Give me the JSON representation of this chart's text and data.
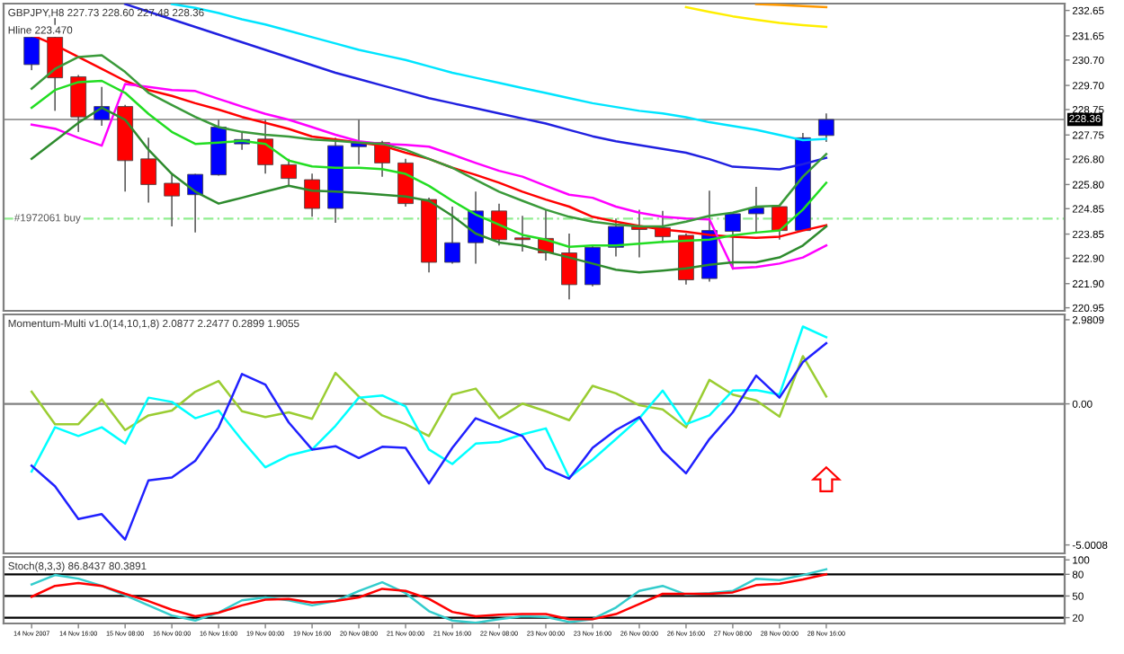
{
  "chart_data": [
    {
      "type": "candlestick",
      "title": "GBPJPY,H8 227.73 228.60 227.48 228.36",
      "annotations": [
        "Hline 223.470"
      ],
      "categories": [
        null,
        null,
        null,
        null,
        null,
        null,
        null,
        null,
        null,
        null,
        null,
        null,
        null,
        null,
        null,
        null,
        null,
        null,
        null,
        null,
        null,
        null,
        null,
        null,
        null,
        null,
        null,
        null,
        null,
        null,
        null,
        null,
        null,
        null,
        null
      ],
      "tick_labels": "y",
      "ohlc": [
        [
          230.52,
          231.7,
          230.3,
          231.6
        ],
        [
          231.6,
          232.35,
          228.7,
          230.0
        ],
        [
          230.04,
          230.11,
          227.87,
          228.46
        ],
        [
          228.35,
          229.64,
          228.11,
          228.87
        ],
        [
          228.87,
          228.93,
          225.52,
          226.74
        ],
        [
          226.81,
          227.64,
          225.09,
          225.8
        ],
        [
          225.85,
          226.22,
          224.15,
          225.35
        ],
        [
          225.4,
          226.22,
          223.91,
          226.2
        ],
        [
          226.18,
          228.35,
          226.15,
          228.06
        ],
        [
          227.4,
          227.87,
          227.17,
          227.57
        ],
        [
          227.59,
          228.35,
          226.23,
          226.58
        ],
        [
          226.58,
          226.81,
          225.75,
          226.04
        ],
        [
          225.99,
          226.23,
          224.53,
          224.86
        ],
        [
          224.86,
          227.64,
          224.29,
          227.33
        ],
        [
          227.29,
          228.35,
          226.58,
          227.45
        ],
        [
          227.45,
          227.52,
          226.11,
          226.65
        ],
        [
          226.65,
          226.81,
          224.93,
          225.05
        ],
        [
          225.21,
          225.28,
          222.34,
          222.74
        ],
        [
          222.74,
          224.93,
          222.69,
          223.51
        ],
        [
          223.51,
          225.52,
          222.69,
          224.76
        ],
        [
          224.76,
          225.05,
          223.4,
          223.63
        ],
        [
          223.7,
          224.57,
          223.16,
          223.63
        ],
        [
          223.68,
          224.81,
          222.81,
          223.11
        ],
        [
          223.11,
          223.87,
          221.28,
          221.86
        ],
        [
          221.86,
          223.4,
          221.79,
          223.33
        ],
        [
          223.33,
          224.46,
          222.97,
          224.15
        ],
        [
          224.17,
          224.81,
          222.93,
          224.03
        ],
        [
          224.1,
          224.76,
          223.51,
          223.75
        ],
        [
          223.8,
          223.87,
          221.86,
          222.05
        ],
        [
          222.1,
          225.56,
          221.98,
          223.99
        ],
        [
          223.96,
          224.69,
          222.45,
          224.65
        ],
        [
          224.65,
          225.71,
          223.87,
          224.88
        ],
        [
          224.93,
          224.93,
          223.63,
          223.99
        ],
        [
          223.99,
          227.83,
          223.99,
          227.64
        ],
        [
          227.73,
          228.6,
          227.48,
          228.36
        ]
      ],
      "colors": [
        "#0000ff",
        "#ff0000",
        "#ff0000",
        "#0000ff",
        "#ff0000",
        "#ff0000",
        "#ff0000",
        "#0000ff",
        "#0000ff",
        "#0000ff",
        "#ff0000",
        "#ff0000",
        "#ff0000",
        "#0000ff",
        "#0000ff",
        "#ff0000",
        "#ff0000",
        "#ff0000",
        "#0000ff",
        "#0000ff",
        "#ff0000",
        "#ff0000",
        "#ff0000",
        "#ff0000",
        "#0000ff",
        "#0000ff",
        "#ff0000",
        "#ff0000",
        "#ff0000",
        "#0000ff",
        "#0000ff",
        "#0000ff",
        "#ff0000",
        "#0000ff",
        "#0000ff"
      ],
      "series": [
        {
          "type": "line",
          "color": "#00e5ff",
          "values": [
            null,
            null,
            null,
            null,
            null,
            null,
            232.9,
            232.75,
            232.55,
            232.3,
            232.1,
            231.85,
            231.6,
            231.35,
            231.1,
            230.9,
            230.7,
            230.45,
            230.2,
            230.0,
            229.8,
            229.6,
            229.4,
            229.2,
            229.0,
            228.85,
            228.7,
            228.6,
            228.45,
            228.25,
            228.1,
            227.95,
            227.75,
            227.55,
            227.6
          ]
        },
        {
          "type": "line",
          "color": "#2020e0",
          "values": [
            null,
            null,
            null,
            null,
            232.9,
            232.6,
            232.3,
            232.0,
            231.7,
            231.4,
            231.1,
            230.8,
            230.5,
            230.2,
            229.95,
            229.7,
            229.45,
            229.2,
            229.0,
            228.8,
            228.6,
            228.4,
            228.2,
            227.95,
            227.7,
            227.5,
            227.35,
            227.2,
            227.05,
            226.8,
            226.5,
            226.45,
            226.4,
            226.6,
            226.85
          ]
        },
        {
          "type": "line",
          "color": "#ffee00",
          "values": [
            null,
            null,
            null,
            null,
            null,
            null,
            null,
            null,
            null,
            null,
            null,
            null,
            null,
            null,
            null,
            null,
            null,
            null,
            null,
            null,
            null,
            null,
            null,
            null,
            null,
            null,
            null,
            null,
            232.78,
            232.59,
            232.42,
            232.28,
            232.16,
            232.07,
            232.0
          ]
        },
        {
          "type": "line",
          "color": "#ff9900",
          "values": [
            null,
            null,
            null,
            null,
            null,
            null,
            null,
            null,
            null,
            null,
            null,
            null,
            null,
            null,
            null,
            null,
            null,
            null,
            null,
            null,
            null,
            null,
            null,
            null,
            null,
            null,
            null,
            null,
            null,
            null,
            null,
            232.9,
            232.87,
            232.82,
            232.78
          ]
        },
        {
          "type": "line",
          "color": "#ff0000",
          "values": [
            231.69,
            231.29,
            230.82,
            230.35,
            229.88,
            229.52,
            229.29,
            229.0,
            228.75,
            228.46,
            228.23,
            227.99,
            227.69,
            227.57,
            227.45,
            227.33,
            227.05,
            226.81,
            226.46,
            226.18,
            225.87,
            225.52,
            225.21,
            224.93,
            224.53,
            224.34,
            224.17,
            224.03,
            223.94,
            223.82,
            223.75,
            223.7,
            223.75,
            223.99,
            224.2
          ]
        },
        {
          "type": "line",
          "color": "#ff00ff",
          "values": [
            228.16,
            228.0,
            227.64,
            227.33,
            229.76,
            229.64,
            229.52,
            229.48,
            229.17,
            228.87,
            228.58,
            228.35,
            228.06,
            227.76,
            227.5,
            227.4,
            227.36,
            227.29,
            226.98,
            226.65,
            226.34,
            226.11,
            225.75,
            225.4,
            225.28,
            224.93,
            224.69,
            224.53,
            224.46,
            224.43,
            222.5,
            222.55,
            222.69,
            222.93,
            223.4
          ]
        },
        {
          "type": "line",
          "color": "#22dd22",
          "values": [
            228.82,
            229.52,
            229.83,
            229.88,
            229.41,
            228.58,
            227.87,
            227.4,
            227.45,
            227.52,
            227.4,
            226.74,
            226.51,
            226.46,
            226.46,
            226.41,
            226.22,
            225.75,
            225.16,
            224.62,
            224.22,
            223.82,
            223.63,
            223.35,
            223.4,
            223.4,
            223.47,
            223.54,
            223.59,
            223.63,
            223.8,
            223.91,
            223.99,
            224.81,
            225.87
          ]
        },
        {
          "type": "line",
          "color": "#3a9a3a",
          "values": [
            229.57,
            230.35,
            230.82,
            230.89,
            230.23,
            229.41,
            228.93,
            228.46,
            228.06,
            227.87,
            227.76,
            227.69,
            227.57,
            227.52,
            227.45,
            227.4,
            227.17,
            226.81,
            226.46,
            225.99,
            225.52,
            225.16,
            224.81,
            224.53,
            224.34,
            224.22,
            224.15,
            224.15,
            224.34,
            224.57,
            224.69,
            224.93,
            224.97,
            226.11,
            227.0
          ]
        },
        {
          "type": "line",
          "color": "#2e8b2e",
          "values": [
            226.81,
            227.52,
            228.23,
            228.82,
            228.35,
            227.17,
            226.22,
            225.52,
            225.05,
            225.28,
            225.52,
            225.75,
            225.56,
            225.52,
            225.47,
            225.4,
            225.33,
            225.16,
            224.57,
            223.87,
            223.52,
            223.4,
            223.16,
            222.93,
            222.69,
            222.45,
            222.34,
            222.41,
            222.5,
            222.64,
            222.74,
            222.74,
            222.93,
            223.4,
            224.15
          ]
        }
      ],
      "ref_lines": [
        {
          "axis": "y",
          "value": 228.36,
          "label": "228.36",
          "color": "#a0a0a0",
          "line_style": "solid"
        },
        {
          "axis": "y",
          "value": 224.46,
          "label": "#1972061 buy",
          "color": "#90ee90",
          "line_style": "dashed"
        }
      ],
      "ylim": [
        220.83,
        232.92
      ],
      "yticks": [
        {
          "value": 232.65,
          "label": "232.65"
        },
        {
          "value": 231.65,
          "label": "231.65"
        },
        {
          "value": 230.7,
          "label": "230.70"
        },
        {
          "value": 229.7,
          "label": "229.70"
        },
        {
          "value": 228.75,
          "label": "228.75"
        },
        {
          "value": 227.75,
          "label": "227.75"
        },
        {
          "value": 226.8,
          "label": "226.80"
        },
        {
          "value": 225.8,
          "label": "225.80"
        },
        {
          "value": 224.85,
          "label": "224.85"
        },
        {
          "value": 223.85,
          "label": "223.85"
        },
        {
          "value": 222.9,
          "label": "222.90"
        },
        {
          "value": 221.9,
          "label": "221.90"
        },
        {
          "value": 220.95,
          "label": "220.95"
        }
      ]
    },
    {
      "type": "line",
      "title": "Momentum-Multi v1.0(14,10,1,8) 2.0877 2.2477 0.2899 1.9055",
      "categories": [
        null,
        null,
        null,
        null,
        null,
        null,
        null,
        null,
        null,
        null,
        null,
        null,
        null,
        null,
        null,
        null,
        null,
        null,
        null,
        null,
        null,
        null,
        null,
        null,
        null,
        null,
        null,
        null,
        null,
        null,
        null,
        null,
        null,
        null,
        null
      ],
      "tick_labels": "y",
      "series": [
        {
          "color": "#9acd32",
          "values": [
            0.43,
            -0.72,
            -0.72,
            0.16,
            -0.93,
            -0.41,
            -0.24,
            0.43,
            0.81,
            -0.26,
            -0.47,
            -0.3,
            -0.53,
            1.1,
            0.26,
            -0.41,
            -0.72,
            -1.14,
            0.33,
            0.54,
            -0.51,
            0.01,
            -0.26,
            -0.58,
            0.64,
            0.37,
            -0.05,
            -0.2,
            -0.83,
            0.85,
            0.33,
            0.12,
            -0.45,
            1.69,
            0.26
          ]
        },
        {
          "color": "#00ffff",
          "values": [
            -2.4,
            -0.83,
            -1.14,
            -0.83,
            -1.41,
            0.22,
            0.07,
            -0.51,
            -0.24,
            -1.29,
            -2.25,
            -1.83,
            -1.62,
            -0.78,
            0.22,
            0.3,
            -0.09,
            -1.62,
            -2.13,
            -1.41,
            -1.35,
            -1.08,
            -0.87,
            -2.61,
            -1.98,
            -1.25,
            -0.51,
            0.47,
            -0.72,
            -0.41,
            0.47,
            0.49,
            0.33,
            2.74,
            2.36
          ]
        },
        {
          "color": "#2020ff",
          "values": [
            -2.19,
            -2.92,
            -4.08,
            -3.91,
            -4.81,
            -2.71,
            -2.61,
            -2.02,
            -0.83,
            1.06,
            0.68,
            -0.66,
            -1.62,
            -1.5,
            -1.92,
            -1.52,
            -1.56,
            -2.82,
            -1.56,
            -0.51,
            -0.83,
            -1.14,
            -2.29,
            -2.65,
            -1.56,
            -0.93,
            -0.47,
            -1.67,
            -2.46,
            -1.25,
            -0.3,
            1.0,
            0.22,
            1.48,
            2.15
          ]
        }
      ],
      "ref_lines": [
        {
          "axis": "y",
          "value": 0,
          "color": "#808080",
          "line_style": "solid"
        }
      ],
      "ylim": [
        -5.3,
        3.17
      ],
      "yticks": [
        2.9809,
        {
          "value": 0,
          "label": "0.00"
        },
        -5.0008
      ]
    },
    {
      "type": "line",
      "title": "Stoch(8,3,3) 86.8437 80.3891",
      "categories": [
        "14 Nov 2007",
        null,
        "14 Nov 16:00",
        null,
        "15 Nov 08:00",
        null,
        "16 Nov 00:00",
        null,
        "16 Nov 16:00",
        null,
        "19 Nov 00:00",
        null,
        "19 Nov 16:00",
        null,
        "20 Nov 08:00",
        null,
        "21 Nov 00:00",
        null,
        "21 Nov 16:00",
        null,
        "22 Nov 08:00",
        null,
        "23 Nov 00:00",
        null,
        "23 Nov 16:00",
        null,
        "26 Nov 00:00",
        null,
        "26 Nov 16:00",
        null,
        "27 Nov 08:00",
        null,
        "28 Nov 00:00",
        null,
        "28 Nov 16:00"
      ],
      "series": [
        {
          "color": "#33cccc",
          "values": [
            66,
            79,
            74,
            64,
            51,
            37,
            23,
            16,
            27,
            44,
            48,
            44,
            37,
            43,
            57,
            69,
            54,
            29,
            16,
            13,
            18,
            22,
            21,
            14,
            18,
            34,
            57,
            64,
            52,
            54,
            57,
            74,
            72,
            79,
            87
          ]
        },
        {
          "color": "#ff0000",
          "values": [
            49,
            64,
            68,
            64,
            53,
            43,
            31,
            22,
            27,
            37,
            45,
            46,
            41,
            43,
            48,
            60,
            57,
            46,
            28,
            22,
            24,
            25,
            25,
            18,
            18,
            25,
            39,
            53,
            53,
            53,
            55,
            65,
            67,
            73,
            80
          ]
        }
      ],
      "ref_lines": [
        {
          "axis": "y",
          "value": 80,
          "color": "#000000",
          "line_style": "solid"
        },
        {
          "axis": "y",
          "value": 50,
          "color": "#000000",
          "line_style": "solid"
        },
        {
          "axis": "y",
          "value": 20,
          "color": "#000000",
          "line_style": "solid"
        }
      ],
      "ylim": [
        12,
        104
      ],
      "yticks": [
        100,
        80,
        50,
        20
      ]
    }
  ]
}
